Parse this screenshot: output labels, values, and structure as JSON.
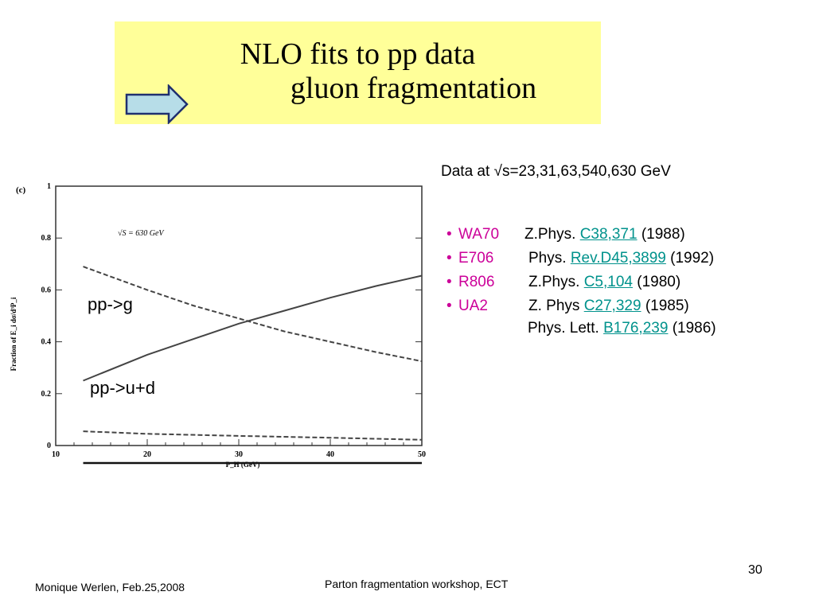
{
  "title": {
    "line1": "NLO fits to pp data",
    "line2": "gluon fragmentation"
  },
  "data_at": "Data at √s=23,31,63,540,630 GeV",
  "references": [
    {
      "bullet": "•",
      "experiment": "WA70",
      "journal": "Z.Phys.",
      "link": "C38,371",
      "year": "(1988)"
    },
    {
      "bullet": "•",
      "experiment": "E706",
      "journal": "Phys.",
      "link": "Rev.D45,3899",
      "year": "(1992)"
    },
    {
      "bullet": "•",
      "experiment": "R806",
      "journal": "Z.Phys.",
      "link": "C5,104",
      "year": "(1980)"
    },
    {
      "bullet": "•",
      "experiment": "UA2",
      "journal": "Z. Phys",
      "link": "C27,329",
      "year": "(1985)"
    }
  ],
  "extra_reference": {
    "journal": "Phys. Lett.",
    "link": "B176,239",
    "year": "(1986)"
  },
  "curve_labels": {
    "gluon": "pp->g",
    "quark": "pp->u+d"
  },
  "footer": {
    "author": "Monique Werlen, Feb.25,2008",
    "event": "Parton fragmentation workshop, ECT",
    "page": "30"
  },
  "colors": {
    "title_bg": "#ffff99",
    "experiment": "#cc0099",
    "link": "#00928c",
    "arrow_fill": "#b7dde8"
  },
  "chart_data": {
    "type": "line",
    "panel_label": "(c)",
    "annotation": "√S = 630 GeV",
    "xlabel": "P_H (GeV)",
    "ylabel": "Fraction of E_i dσ/d³P_i",
    "xlim": [
      10,
      50
    ],
    "ylim": [
      0,
      1
    ],
    "xticks": [
      10,
      20,
      30,
      40,
      50
    ],
    "yticks": [
      0,
      0.2,
      0.4,
      0.6,
      0.8,
      1
    ],
    "x_start": 13,
    "series": [
      {
        "style": "solid",
        "x": [
          13,
          20,
          25,
          30,
          35,
          40,
          45,
          50
        ],
        "y": [
          0.25,
          0.35,
          0.41,
          0.47,
          0.52,
          0.57,
          0.615,
          0.655
        ]
      },
      {
        "style": "dashed",
        "x": [
          13,
          20,
          25,
          30,
          35,
          40,
          45,
          50
        ],
        "y": [
          0.69,
          0.6,
          0.54,
          0.49,
          0.44,
          0.4,
          0.36,
          0.325
        ]
      },
      {
        "style": "dashed",
        "x": [
          13,
          20,
          30,
          40,
          50
        ],
        "y": [
          0.055,
          0.045,
          0.037,
          0.03,
          0.022
        ]
      }
    ]
  }
}
